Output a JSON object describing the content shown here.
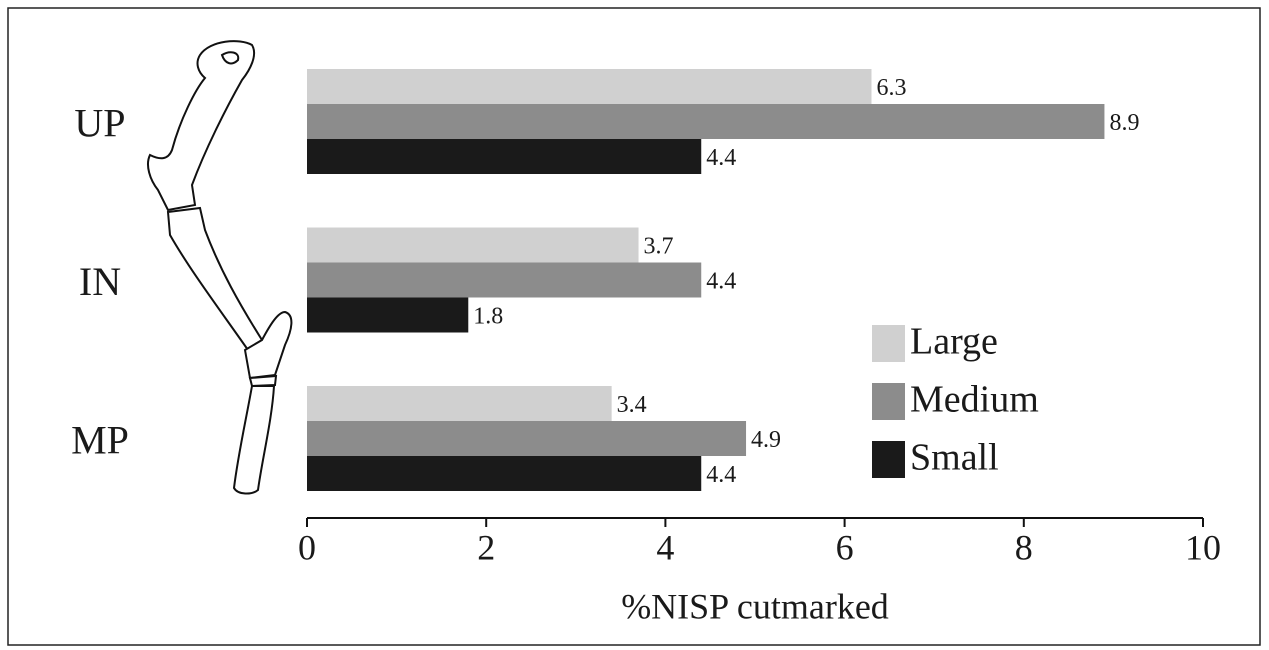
{
  "chart_data": {
    "type": "bar",
    "orientation": "horizontal",
    "categories": [
      "UP",
      "IN",
      "MP"
    ],
    "series": [
      {
        "name": "Large",
        "color": "#d0d0d0",
        "values": [
          6.3,
          3.7,
          3.4
        ]
      },
      {
        "name": "Medium",
        "color": "#8c8c8c",
        "values": [
          8.9,
          4.4,
          4.9
        ]
      },
      {
        "name": "Small",
        "color": "#1a1a1a",
        "values": [
          4.4,
          1.8,
          4.4
        ]
      }
    ],
    "xlim": [
      0,
      10
    ],
    "xticks": [
      0,
      2,
      4,
      6,
      8,
      10
    ],
    "xlabel": "%NISP cutmarked",
    "legend": "right",
    "grid": false
  }
}
